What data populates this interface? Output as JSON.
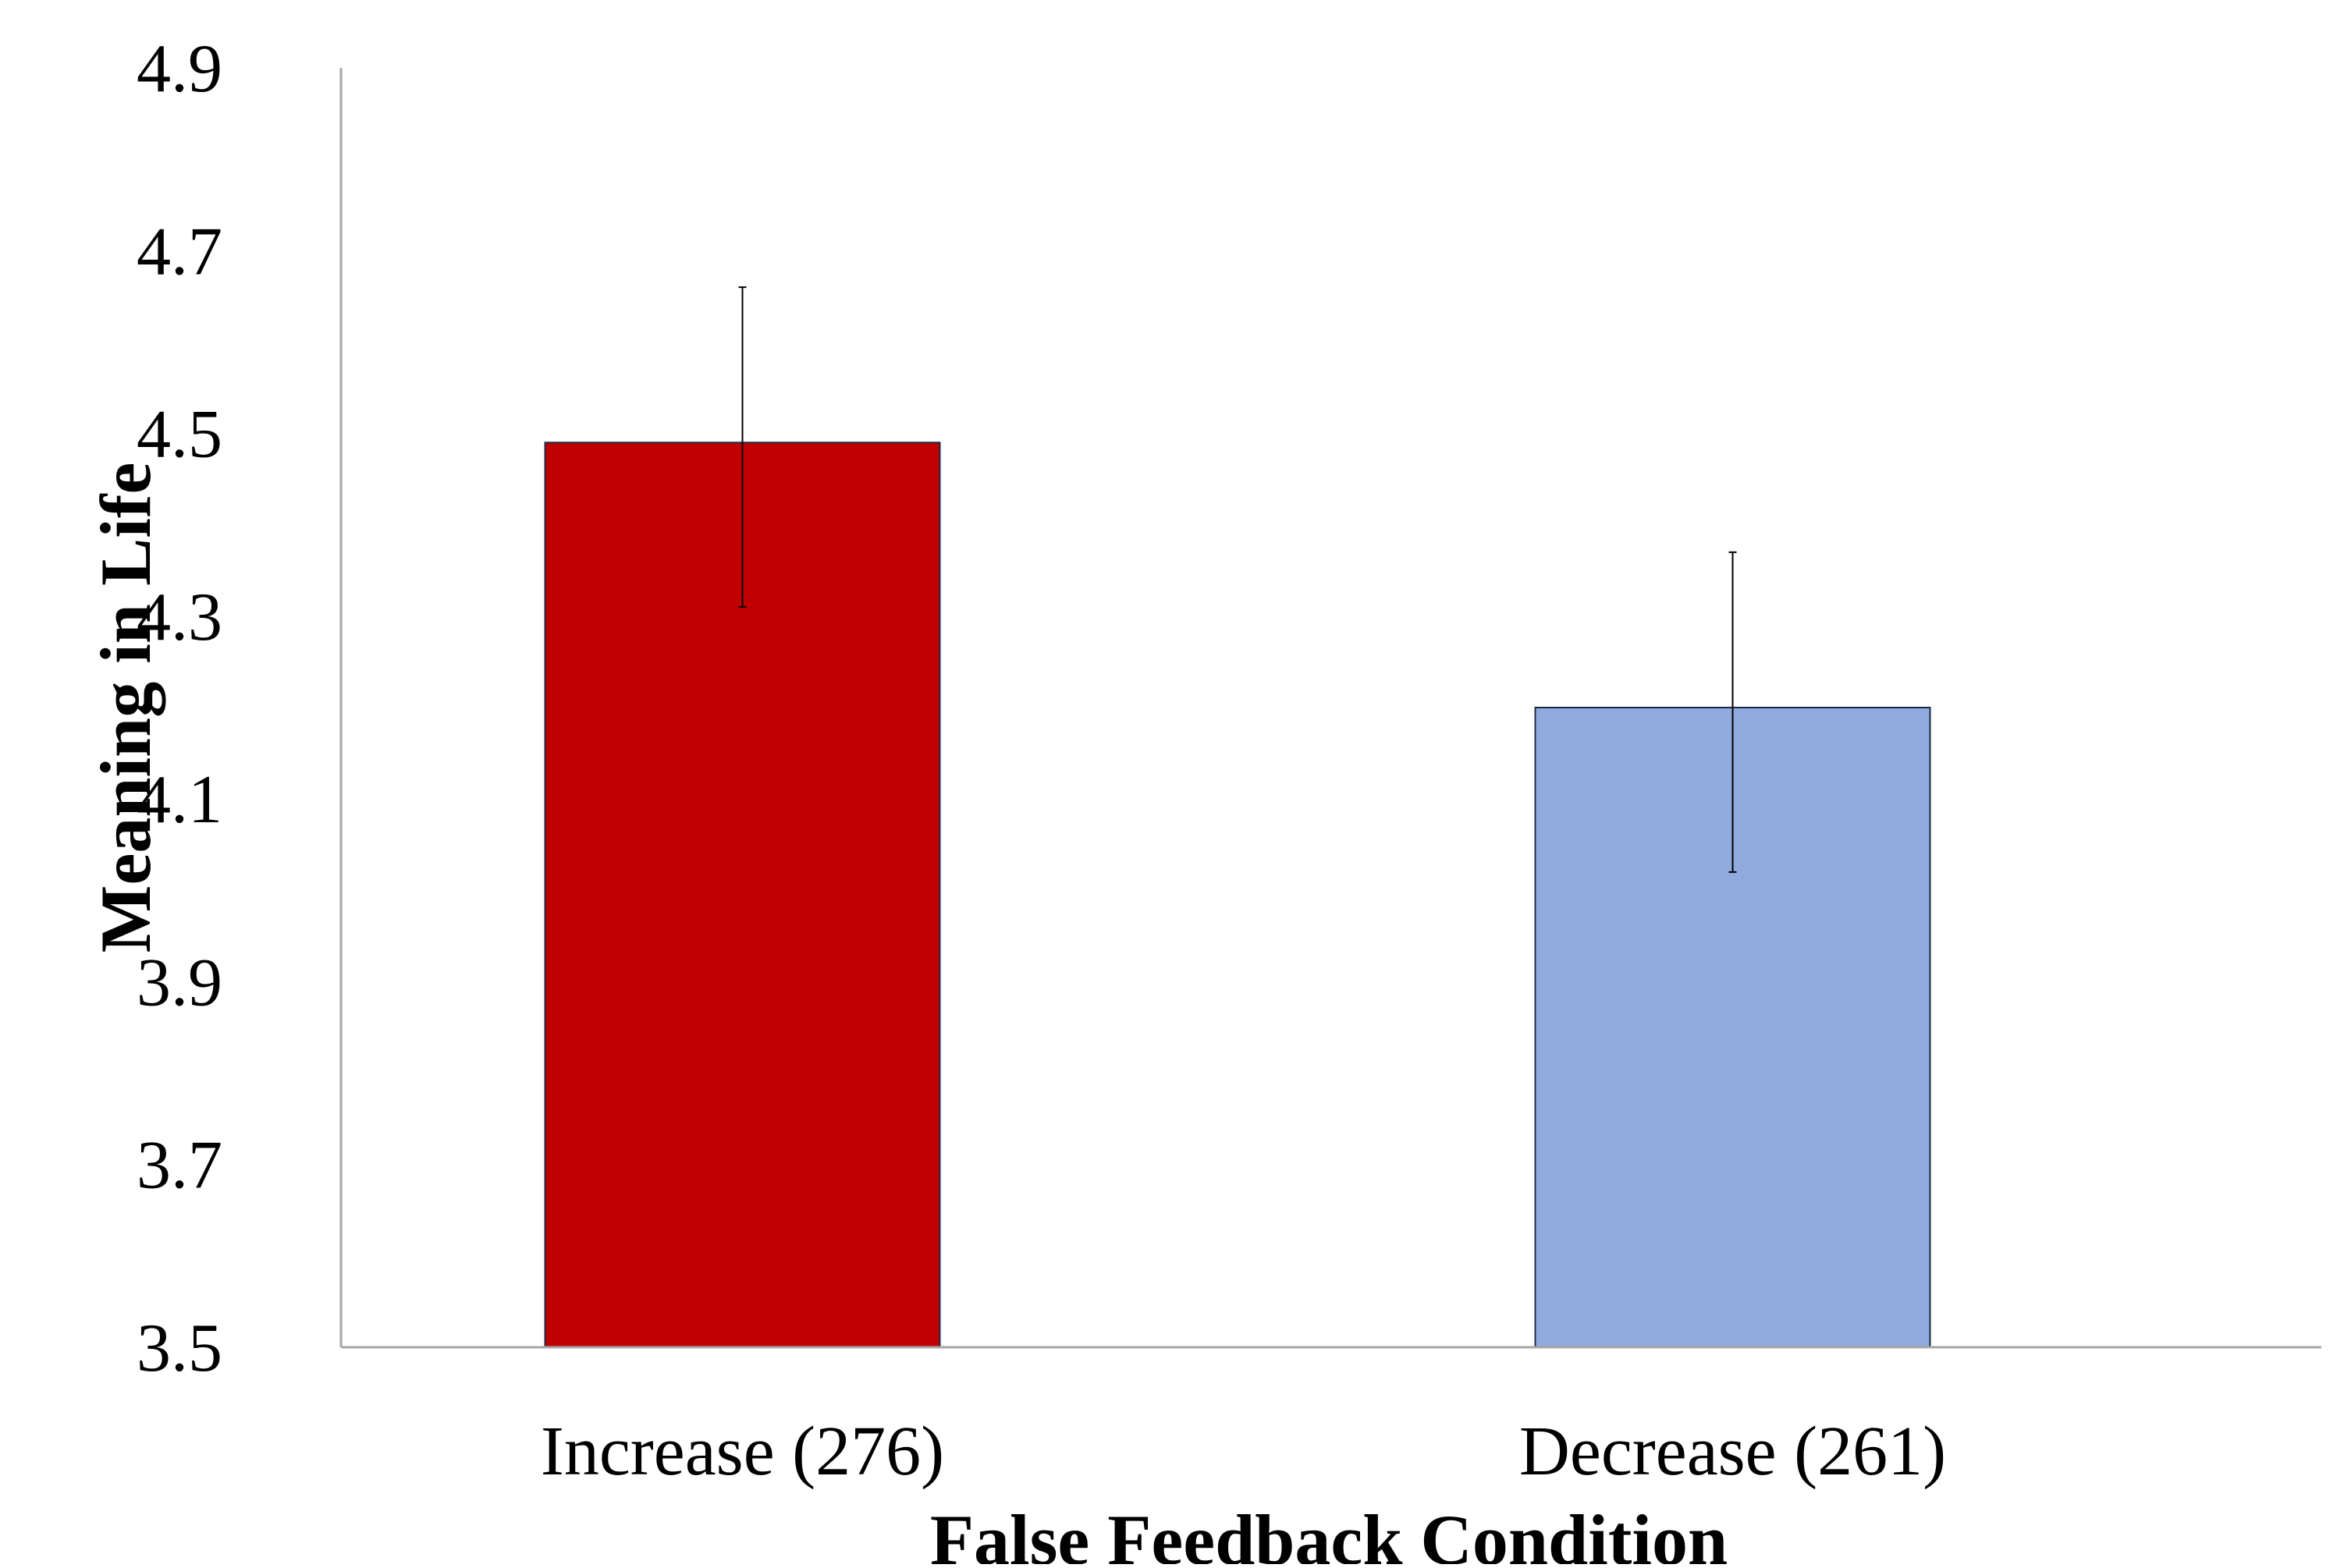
{
  "chart_data": {
    "type": "bar",
    "categories": [
      "Increase (276)",
      "Decrease (261)"
    ],
    "values": [
      4.49,
      4.2
    ],
    "error_bars": [
      {
        "low": 4.31,
        "high": 4.66
      },
      {
        "low": 4.02,
        "high": 4.37
      }
    ],
    "bar_colors": [
      "#C00000",
      "#8FAADC"
    ],
    "bar_edge_color": "#1F2A44",
    "xlabel": "False Feedback Condition",
    "ylabel": "Meaning in Life",
    "ylim": [
      3.5,
      4.9
    ],
    "yticks": [
      "3.5",
      "3.7",
      "3.9",
      "4.1",
      "4.3",
      "4.5",
      "4.7",
      "4.9"
    ],
    "grid": false,
    "legend": "none"
  }
}
